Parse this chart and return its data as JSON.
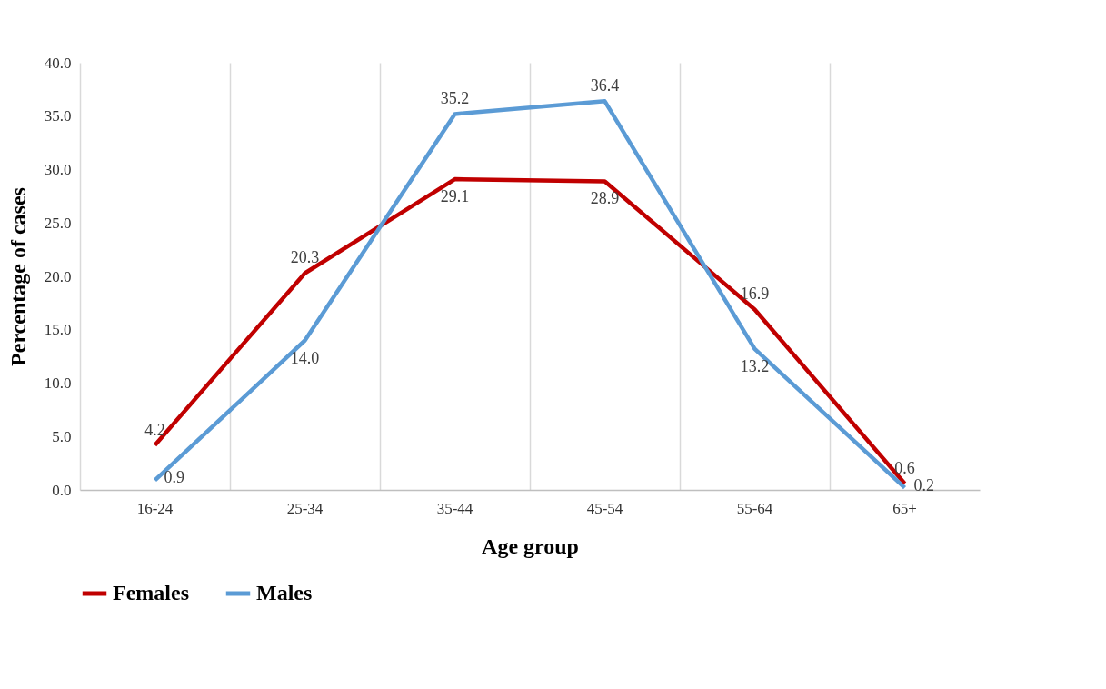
{
  "chart_data": {
    "type": "line",
    "xlabel": "Age group",
    "ylabel": "Percentage of cases",
    "categories": [
      "16-24",
      "25-34",
      "35-44",
      "45-54",
      "55-64",
      "65+"
    ],
    "series": [
      {
        "name": "Females",
        "color": "#c00000",
        "values": [
          4.2,
          20.3,
          29.1,
          28.9,
          16.9,
          0.6
        ],
        "value_labels": [
          "4.2",
          "20.3",
          "29.1",
          "28.9",
          "16.9",
          "0.6"
        ]
      },
      {
        "name": "Males",
        "color": "#5b9bd5",
        "values": [
          0.9,
          14.0,
          35.2,
          36.4,
          13.2,
          0.2
        ],
        "value_labels": [
          "0.9",
          "14.0",
          "35.2",
          "36.4",
          "13.2",
          "0.2"
        ]
      }
    ],
    "ylim": [
      0,
      40
    ],
    "yticks": [
      {
        "value": 0,
        "label": "0.0"
      },
      {
        "value": 5,
        "label": "5.0"
      },
      {
        "value": 10,
        "label": "10.0"
      },
      {
        "value": 15,
        "label": "15.0"
      },
      {
        "value": 20,
        "label": "20.0"
      },
      {
        "value": 25,
        "label": "25.0"
      },
      {
        "value": 30,
        "label": "30.0"
      },
      {
        "value": 35,
        "label": "35.0"
      },
      {
        "value": 40,
        "label": "40.0"
      }
    ],
    "grid": "x",
    "legend": "bottom",
    "marker": "none",
    "line_style": "solid"
  }
}
